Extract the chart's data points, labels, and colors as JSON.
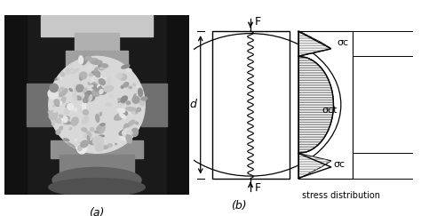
{
  "bg_color": "#ffffff",
  "label_a": "(a)",
  "label_b": "(b)",
  "label_F_top": "F",
  "label_F_bot": "F",
  "label_d": "d",
  "label_sigma_ct": "σct",
  "label_sigma_c_top": "σc",
  "label_sigma_c_bot": "σc",
  "label_stress": "stress distribution",
  "figsize": [
    4.74,
    2.43
  ],
  "dpi": 100,
  "photo_bg": "#1a1a1a",
  "machine_top_color": "#c8c8c8",
  "machine_mid_color": "#a0a0a0",
  "machine_bot_color": "#888888",
  "cylinder_color": "#d8d8d8",
  "clamp_color": "#707070"
}
